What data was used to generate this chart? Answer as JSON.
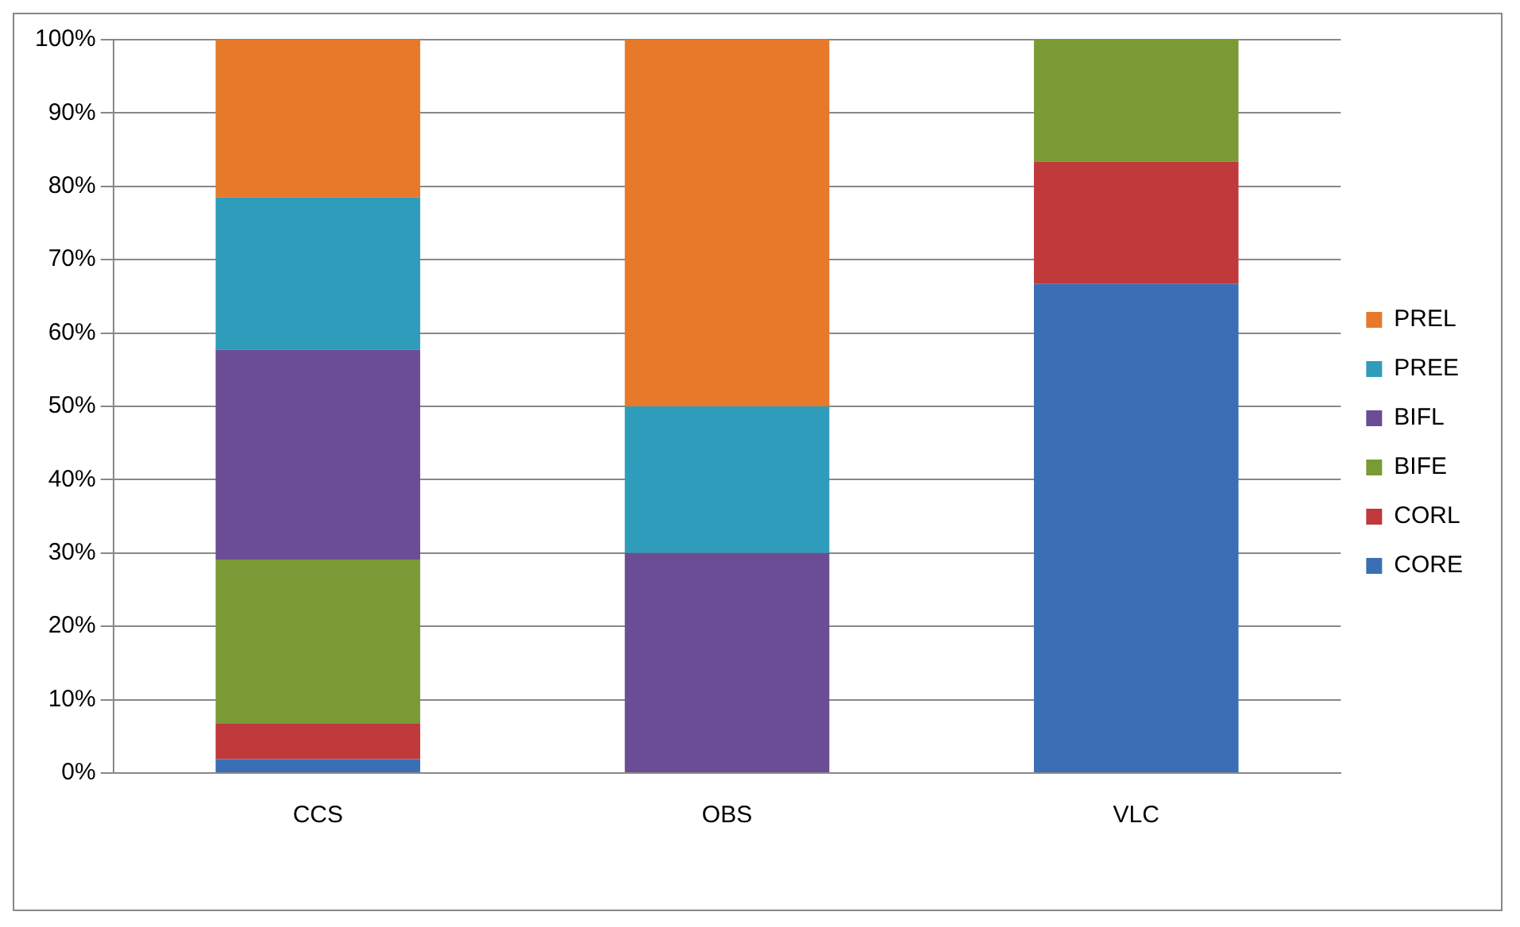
{
  "chart_data": {
    "type": "bar",
    "stacked": true,
    "categories": [
      "CCS",
      "OBS",
      "VLC"
    ],
    "series": [
      {
        "name": "CORE",
        "color": "#3a6fb5",
        "values": [
          1.9,
          0,
          66.7
        ]
      },
      {
        "name": "CORL",
        "color": "#c0393b",
        "values": [
          4.8,
          0,
          16.7
        ]
      },
      {
        "name": "BIFE",
        "color": "#7a9a35",
        "values": [
          22.4,
          0,
          16.6
        ]
      },
      {
        "name": "BIFL",
        "color": "#6a4d94",
        "values": [
          28.6,
          30,
          0
        ]
      },
      {
        "name": "PREE",
        "color": "#2f9cbb",
        "values": [
          20.8,
          20,
          0
        ]
      },
      {
        "name": "PREL",
        "color": "#e6792a",
        "values": [
          21.5,
          50,
          0
        ]
      }
    ],
    "ylim": [
      0,
      100
    ],
    "yticks": [
      {
        "value": 0,
        "label": "0%"
      },
      {
        "value": 10,
        "label": "10%"
      },
      {
        "value": 20,
        "label": "20%"
      },
      {
        "value": 30,
        "label": "30%"
      },
      {
        "value": 40,
        "label": "40%"
      },
      {
        "value": 50,
        "label": "50%"
      },
      {
        "value": 60,
        "label": "60%"
      },
      {
        "value": 70,
        "label": "70%"
      },
      {
        "value": 80,
        "label": "80%"
      },
      {
        "value": 90,
        "label": "90%"
      },
      {
        "value": 100,
        "label": "100%"
      }
    ],
    "grid": "y",
    "legend": "right"
  }
}
